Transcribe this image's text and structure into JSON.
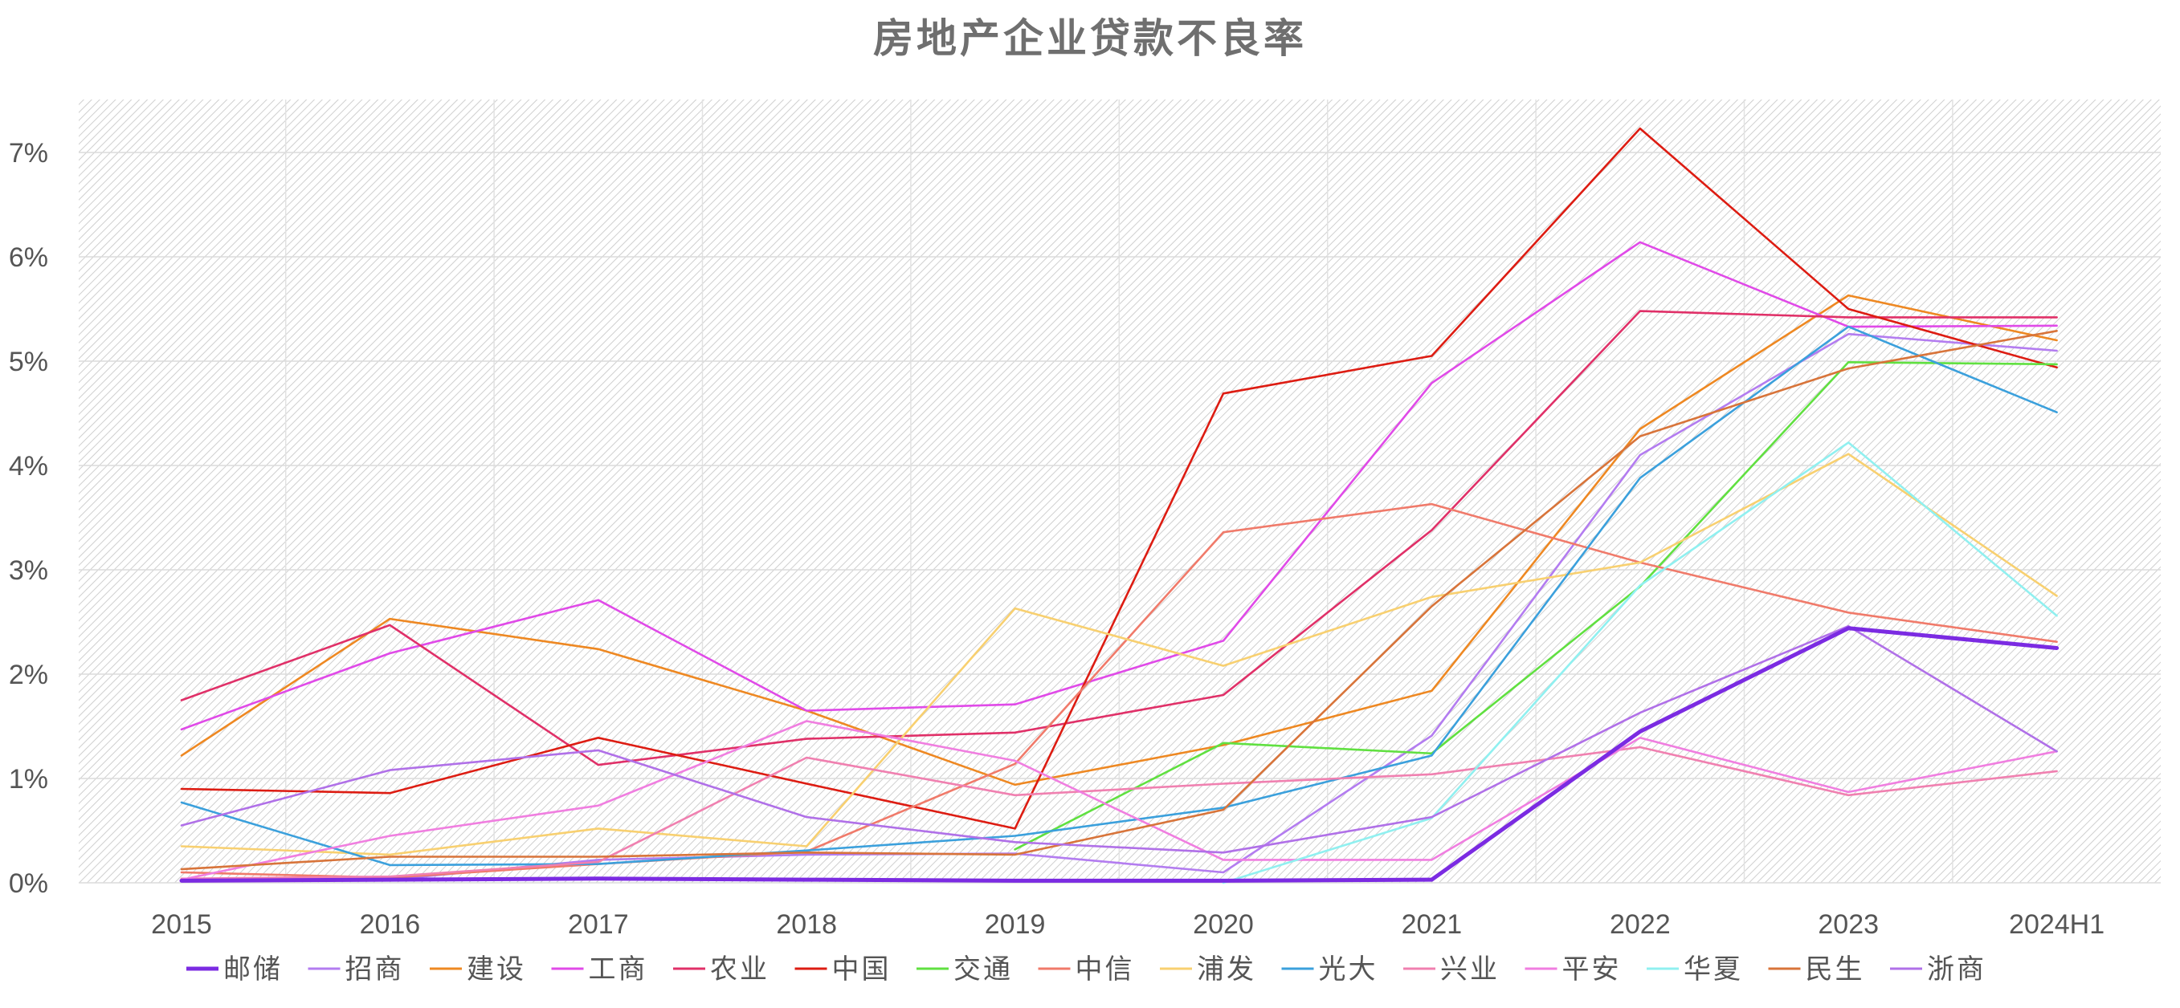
{
  "chart_data": {
    "type": "line",
    "title": "房地产企业贷款不良率",
    "xlabel": "",
    "ylabel": "",
    "categories": [
      "2015",
      "2016",
      "2017",
      "2018",
      "2019",
      "2020",
      "2021",
      "2022",
      "2023",
      "2024H1"
    ],
    "ylim": [
      0,
      7.5
    ],
    "yticks": [
      0,
      1,
      2,
      3,
      4,
      5,
      6,
      7
    ],
    "ytick_labels": [
      "0%",
      "1%",
      "2%",
      "3%",
      "4%",
      "5%",
      "6%",
      "7%"
    ],
    "grid": true,
    "legend_position": "bottom",
    "series": [
      {
        "name": "邮储",
        "color": "#7b2be2",
        "bold": true,
        "values": [
          0.02,
          0.03,
          0.04,
          0.03,
          0.02,
          0.02,
          0.03,
          1.45,
          2.44,
          2.25
        ]
      },
      {
        "name": "招商",
        "color": "#b37cf0",
        "values": [
          0.03,
          0.03,
          0.22,
          0.27,
          0.28,
          0.1,
          1.41,
          4.1,
          5.26,
          5.1
        ]
      },
      {
        "name": "建设",
        "color": "#ee8822",
        "values": [
          1.22,
          2.53,
          2.24,
          1.65,
          0.94,
          1.32,
          1.84,
          4.35,
          5.63,
          5.2
        ]
      },
      {
        "name": "工商",
        "color": "#e04ae8",
        "values": [
          1.47,
          2.2,
          2.71,
          1.65,
          1.71,
          2.32,
          4.79,
          6.14,
          5.33,
          5.34
        ]
      },
      {
        "name": "农业",
        "color": "#e03068",
        "values": [
          1.75,
          2.47,
          1.13,
          1.38,
          1.44,
          1.8,
          3.38,
          5.48,
          5.42,
          5.42
        ]
      },
      {
        "name": "中国",
        "color": "#dd1c12",
        "values": [
          0.9,
          0.86,
          1.39,
          0.95,
          0.52,
          4.69,
          5.05,
          7.23,
          5.5,
          4.94
        ]
      },
      {
        "name": "交通",
        "color": "#60e040",
        "values": [
          null,
          null,
          null,
          null,
          0.32,
          1.34,
          1.24,
          2.84,
          4.99,
          4.97
        ]
      },
      {
        "name": "中信",
        "color": "#f07a6a",
        "values": [
          0.1,
          0.05,
          0.18,
          0.3,
          1.14,
          3.36,
          3.63,
          3.07,
          2.59,
          2.31
        ]
      },
      {
        "name": "浦发",
        "color": "#f8d070",
        "values": [
          0.35,
          0.27,
          0.52,
          0.35,
          2.63,
          2.08,
          2.74,
          3.07,
          4.11,
          2.75
        ]
      },
      {
        "name": "光大",
        "color": "#3ba0dc",
        "values": [
          0.77,
          0.17,
          0.18,
          0.31,
          0.45,
          0.72,
          1.22,
          3.88,
          5.33,
          4.51
        ]
      },
      {
        "name": "兴业",
        "color": "#f080b0",
        "values": [
          0.04,
          0.06,
          0.2,
          1.2,
          0.84,
          0.95,
          1.04,
          1.3,
          0.84,
          1.07
        ]
      },
      {
        "name": "平安",
        "color": "#f07ee0",
        "values": [
          0.03,
          0.45,
          0.74,
          1.55,
          1.17,
          0.22,
          0.22,
          1.39,
          0.87,
          1.26
        ]
      },
      {
        "name": "华夏",
        "color": "#90f0f0",
        "values": [
          null,
          null,
          null,
          null,
          null,
          0.0,
          0.62,
          2.85,
          4.22,
          2.56
        ]
      },
      {
        "name": "民生",
        "color": "#d8743a",
        "values": [
          0.13,
          0.25,
          0.25,
          0.29,
          0.27,
          0.7,
          2.65,
          4.28,
          4.93,
          5.29
        ]
      },
      {
        "name": "浙商",
        "color": "#b070e8",
        "values": [
          0.55,
          1.08,
          1.27,
          0.63,
          0.39,
          0.29,
          0.63,
          1.63,
          2.46,
          1.26
        ]
      }
    ]
  }
}
